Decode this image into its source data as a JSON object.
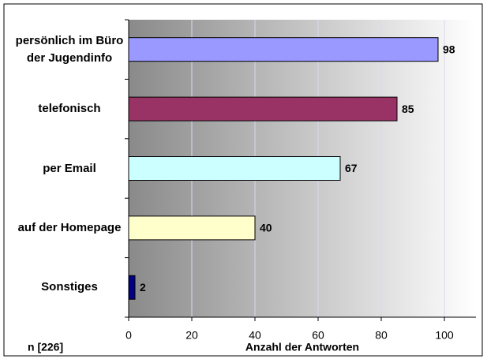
{
  "chart_data": {
    "type": "bar",
    "orientation": "horizontal",
    "categories": [
      "persönlich im Büro der Jugendinfo",
      "telefonisch",
      "per Email",
      "auf der Homepage",
      "Sonstiges"
    ],
    "values": [
      98,
      85,
      67,
      40,
      2
    ],
    "colors": [
      "#9999ff",
      "#993366",
      "#ccffff",
      "#ffffcc",
      "#000080"
    ],
    "xlabel": "Anzahl der Antworten",
    "annotation": "n [226]",
    "xlim": [
      0,
      110
    ],
    "xticks": [
      0,
      20,
      40,
      60,
      80,
      100
    ],
    "grid": true
  }
}
